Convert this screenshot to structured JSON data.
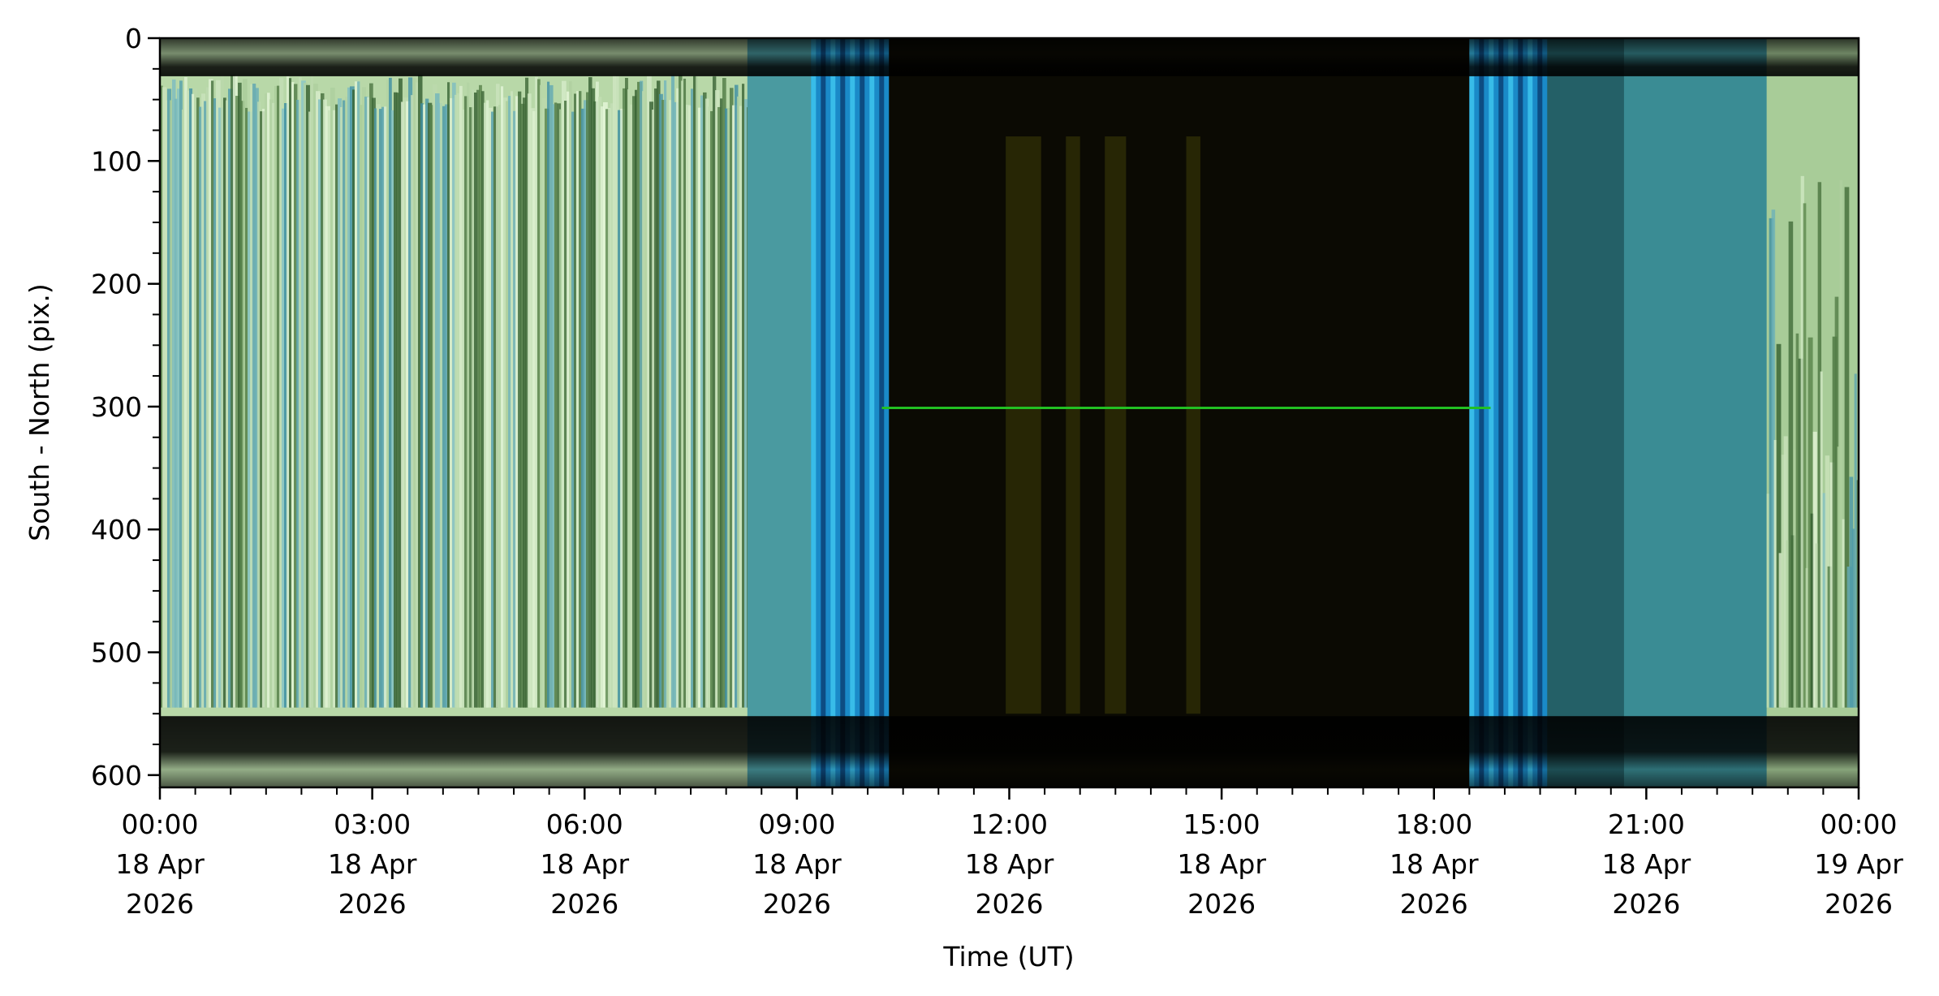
{
  "chart_data": {
    "type": "heatmap",
    "title": "",
    "xlabel": "Time (UT)",
    "ylabel": "South - North (pix.)",
    "xlim_hours": [
      0,
      24
    ],
    "ylim": [
      610,
      0
    ],
    "y_inverted": true,
    "grid": false,
    "x_ticks": [
      {
        "hour": 0,
        "lines": [
          "00:00",
          "18 Apr",
          "2026"
        ]
      },
      {
        "hour": 3,
        "lines": [
          "03:00",
          "18 Apr",
          "2026"
        ]
      },
      {
        "hour": 6,
        "lines": [
          "06:00",
          "18 Apr",
          "2026"
        ]
      },
      {
        "hour": 9,
        "lines": [
          "09:00",
          "18 Apr",
          "2026"
        ]
      },
      {
        "hour": 12,
        "lines": [
          "12:00",
          "18 Apr",
          "2026"
        ]
      },
      {
        "hour": 15,
        "lines": [
          "15:00",
          "18 Apr",
          "2026"
        ]
      },
      {
        "hour": 18,
        "lines": [
          "18:00",
          "18 Apr",
          "2026"
        ]
      },
      {
        "hour": 21,
        "lines": [
          "21:00",
          "18 Apr",
          "2026"
        ]
      },
      {
        "hour": 24,
        "lines": [
          "00:00",
          "19 Apr",
          "2026"
        ]
      }
    ],
    "x_minor_step_hours": 0.5,
    "y_ticks": [
      0,
      100,
      200,
      300,
      400,
      500,
      600
    ],
    "y_minor_step": 25,
    "segments": [
      {
        "from_hour": 0,
        "to_hour": 8.3,
        "description_color": "#b8d8a8"
      },
      {
        "from_hour": 8.3,
        "to_hour": 9.2,
        "description_color": "#4a9aa0"
      },
      {
        "from_hour": 9.2,
        "to_hour": 10.3,
        "description_color": "#1a8ac8"
      },
      {
        "from_hour": 10.3,
        "to_hour": 18.5,
        "description_color": "#0b0a03"
      },
      {
        "from_hour": 18.5,
        "to_hour": 19.6,
        "description_color": "#1a8ac8"
      },
      {
        "from_hour": 19.6,
        "to_hour": 22.7,
        "description_color": "#3a8c94"
      },
      {
        "from_hour": 22.7,
        "to_hour": 24,
        "description_color": "#a8cc98"
      }
    ],
    "line_feature": {
      "y": 301,
      "from_hour": 10.2,
      "to_hour": 18.8,
      "color": "#22c022"
    }
  }
}
